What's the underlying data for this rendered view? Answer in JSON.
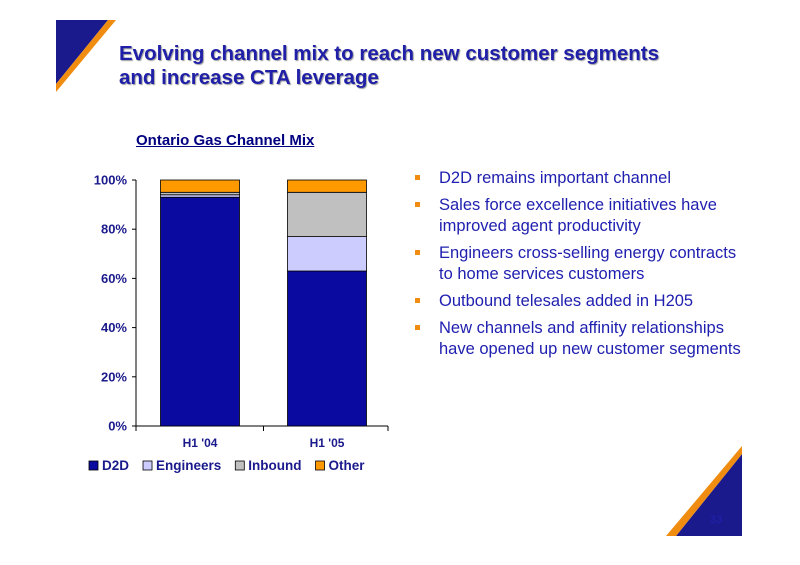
{
  "slide": {
    "title_line_1": "Evolving channel mix to reach new customer segments",
    "title_line_2": "and increase CTA leverage",
    "page_number": "33",
    "bullets": [
      "D2D remains important channel",
      "Sales force excellence initiatives have improved agent productivity",
      "Engineers cross-selling energy contracts to home services customers",
      "Outbound telesales added in H205",
      "New channels and affinity relationships have opened up new customer segments"
    ]
  },
  "colors": {
    "title": "#1f1fa8",
    "accent_orange": "#f08c10",
    "accent_navy": "#1a1a8c",
    "D2D": "#0a0aa0",
    "Engineers": "#ccccff",
    "Inbound": "#c0c0c0",
    "Other": "#ff9900"
  },
  "chart_data": {
    "type": "bar",
    "stacked": true,
    "title": "Ontario Gas Channel Mix",
    "categories": [
      "H1 '04",
      "H1 '05"
    ],
    "series": [
      {
        "name": "D2D",
        "values": [
          93,
          63
        ]
      },
      {
        "name": "Engineers",
        "values": [
          1,
          14
        ]
      },
      {
        "name": "Inbound",
        "values": [
          1,
          18
        ]
      },
      {
        "name": "Other",
        "values": [
          5,
          5
        ]
      }
    ],
    "ylim": [
      0,
      100
    ],
    "yticks": [
      "0%",
      "20%",
      "40%",
      "60%",
      "80%",
      "100%"
    ],
    "grid": false,
    "legend_position": "bottom"
  }
}
